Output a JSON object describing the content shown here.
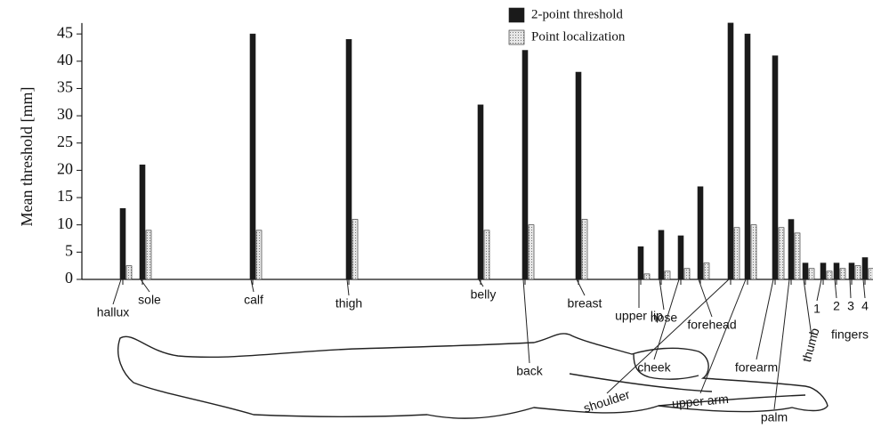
{
  "chart_data": {
    "type": "bar",
    "y_label": "Mean threshold [mm]",
    "categories": [
      "hallux",
      "sole",
      "calf",
      "thigh",
      "belly",
      "back",
      "breast",
      "upper lip",
      "nose",
      "cheek",
      "forehead",
      "shoulder",
      "upper arm",
      "forearm",
      "palm",
      "thumb",
      "1",
      "2",
      "3",
      "4"
    ],
    "group_label": "fingers",
    "series": [
      {
        "name": "2-point threshold",
        "color": "#1a1a1a",
        "values": [
          13,
          21,
          45,
          44,
          32,
          42,
          38,
          6,
          9,
          8,
          17,
          47,
          45,
          41,
          11,
          3,
          3,
          3,
          3,
          4
        ]
      },
      {
        "name": "Point localization",
        "color": "#d9d9d9",
        "values": [
          2.5,
          9,
          9,
          11,
          9,
          10,
          11,
          1,
          1.5,
          2,
          3,
          9.5,
          10,
          9.5,
          8.5,
          2,
          1.5,
          2,
          2.5,
          2
        ]
      }
    ],
    "ylim": [
      0,
      47
    ],
    "yticks": [
      0,
      5,
      10,
      15,
      20,
      25,
      30,
      35,
      40,
      45
    ]
  }
}
